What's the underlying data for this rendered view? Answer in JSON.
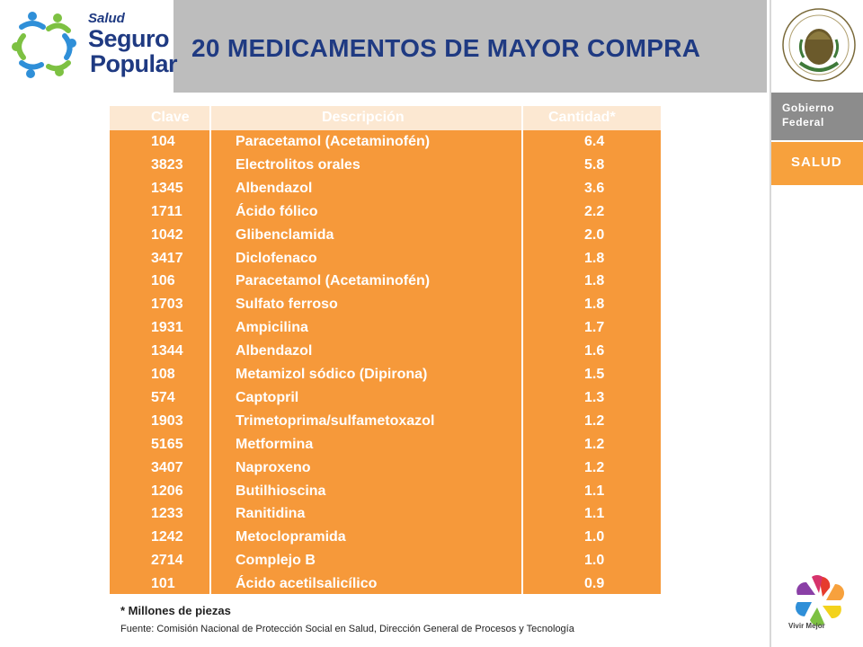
{
  "logo": {
    "line1": "Salud",
    "line2": "Seguro",
    "line3": "Popular"
  },
  "title": "20 MEDICAMENTOS DE MAYOR COMPRA",
  "sidebar": {
    "gobierno_line1": "Gobierno",
    "gobierno_line2": "Federal",
    "salud": "SALUD",
    "vivir": "Vivir Mejor"
  },
  "colors": {
    "table_bg": "#f6993a",
    "header_bg": "#fce8d2",
    "title": "#1f3a82",
    "header_band": "#bdbdbd"
  },
  "table": {
    "headers": {
      "clave": "Clave",
      "descripcion": "Descripción",
      "cantidad": "Cantidad*"
    },
    "rows": [
      {
        "clave": "104",
        "descripcion": "Paracetamol (Acetaminofén)",
        "cantidad": "6.4"
      },
      {
        "clave": "3823",
        "descripcion": "Electrolitos orales",
        "cantidad": "5.8"
      },
      {
        "clave": "1345",
        "descripcion": "Albendazol",
        "cantidad": "3.6"
      },
      {
        "clave": "1711",
        "descripcion": "Ácido fólico",
        "cantidad": "2.2"
      },
      {
        "clave": "1042",
        "descripcion": "Glibenclamida",
        "cantidad": "2.0"
      },
      {
        "clave": "3417",
        "descripcion": "Diclofenaco",
        "cantidad": "1.8"
      },
      {
        "clave": "106",
        "descripcion": "Paracetamol (Acetaminofén)",
        "cantidad": "1.8"
      },
      {
        "clave": "1703",
        "descripcion": "Sulfato  ferroso",
        "cantidad": "1.8"
      },
      {
        "clave": "1931",
        "descripcion": "Ampicilina",
        "cantidad": "1.7"
      },
      {
        "clave": "1344",
        "descripcion": "Albendazol",
        "cantidad": "1.6"
      },
      {
        "clave": "108",
        "descripcion": "Metamizol sódico (Dipirona)",
        "cantidad": "1.5"
      },
      {
        "clave": "574",
        "descripcion": "Captopril",
        "cantidad": "1.3"
      },
      {
        "clave": "1903",
        "descripcion": "Trimetoprima/sulfametoxazol",
        "cantidad": "1.2"
      },
      {
        "clave": "5165",
        "descripcion": "Metformina",
        "cantidad": "1.2"
      },
      {
        "clave": "3407",
        "descripcion": "Naproxeno",
        "cantidad": "1.2"
      },
      {
        "clave": "1206",
        "descripcion": "Butilhioscina",
        "cantidad": "1.1"
      },
      {
        "clave": "1233",
        "descripcion": "Ranitidina",
        "cantidad": "1.1"
      },
      {
        "clave": "1242",
        "descripcion": "Metoclopramida",
        "cantidad": "1.0"
      },
      {
        "clave": "2714",
        "descripcion": "Complejo B",
        "cantidad": "1.0"
      },
      {
        "clave": "101",
        "descripcion": "Ácido acetilsalicílico",
        "cantidad": "0.9"
      }
    ]
  },
  "footnote": "* Millones de piezas",
  "source": "Fuente: Comisión Nacional de Protección Social en Salud, Dirección General  de Procesos y Tecnología"
}
